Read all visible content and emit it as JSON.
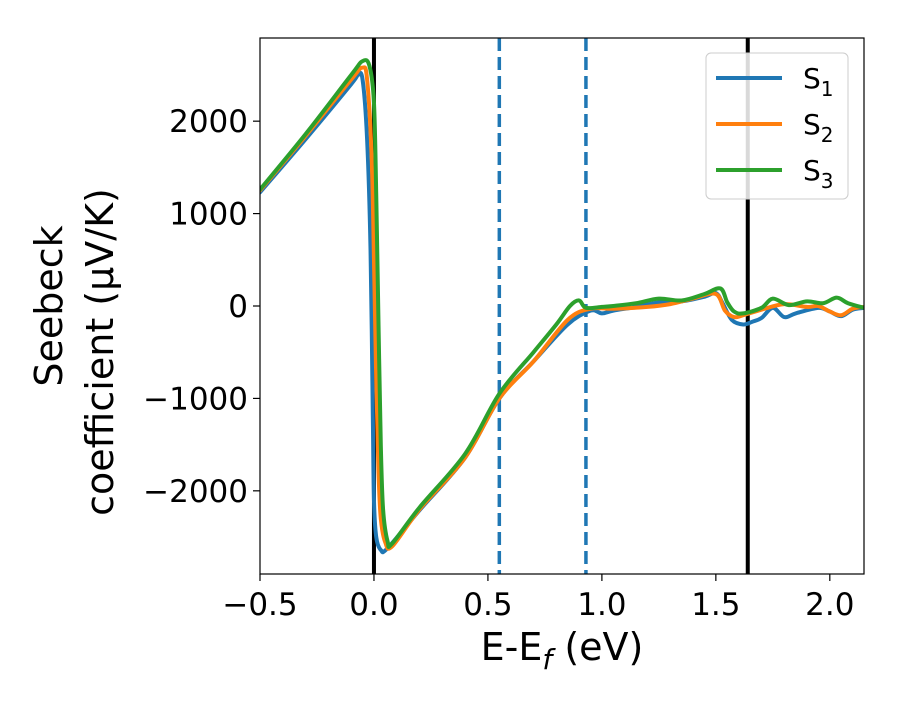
{
  "chart_data": {
    "type": "line",
    "xlabel": "E-E_f (eV)",
    "ylabel_line1": "Seebeck",
    "ylabel_line2": "coefficient  (μV/K)",
    "xlim": [
      -0.5,
      2.15
    ],
    "ylim": [
      -2900,
      2900
    ],
    "xticks": [
      -0.5,
      0.0,
      0.5,
      1.0,
      1.5,
      2.0
    ],
    "xtick_labels": [
      "−0.5",
      "0.0",
      "0.5",
      "1.0",
      "1.5",
      "2.0"
    ],
    "yticks": [
      -2000,
      -1000,
      0,
      1000,
      2000
    ],
    "ytick_labels": [
      "−2000",
      "−1000",
      "0",
      "1000",
      "2000"
    ],
    "vlines": [
      {
        "x": 0.0,
        "style": "solid",
        "color": "#000000"
      },
      {
        "x": 0.55,
        "style": "dashed",
        "color": "#1f77b4"
      },
      {
        "x": 0.93,
        "style": "dashed",
        "color": "#1f77b4"
      },
      {
        "x": 1.64,
        "style": "solid",
        "color": "#000000"
      }
    ],
    "legend_position": "top-right",
    "grid": false,
    "series": [
      {
        "name": "S1",
        "color": "#1f77b4",
        "points": [
          [
            -0.5,
            1230
          ],
          [
            -0.3,
            1805
          ],
          [
            -0.1,
            2400
          ],
          [
            -0.07,
            2500
          ],
          [
            -0.05,
            2450
          ],
          [
            -0.03,
            1800
          ],
          [
            -0.015,
            600
          ],
          [
            -0.005,
            -1200
          ],
          [
            0.0,
            -2100
          ],
          [
            0.01,
            -2500
          ],
          [
            0.03,
            -2640
          ],
          [
            0.06,
            -2620
          ],
          [
            0.2,
            -2210
          ],
          [
            0.4,
            -1640
          ],
          [
            0.55,
            -1000
          ],
          [
            0.7,
            -600
          ],
          [
            0.85,
            -200
          ],
          [
            0.95,
            -50
          ],
          [
            1.0,
            -80
          ],
          [
            1.05,
            -50
          ],
          [
            1.15,
            -10
          ],
          [
            1.25,
            40
          ],
          [
            1.35,
            50
          ],
          [
            1.45,
            100
          ],
          [
            1.5,
            140
          ],
          [
            1.53,
            30
          ],
          [
            1.57,
            -150
          ],
          [
            1.62,
            -200
          ],
          [
            1.66,
            -170
          ],
          [
            1.7,
            -130
          ],
          [
            1.75,
            -20
          ],
          [
            1.8,
            -120
          ],
          [
            1.85,
            -80
          ],
          [
            1.95,
            -20
          ],
          [
            2.0,
            -60
          ],
          [
            2.05,
            -110
          ],
          [
            2.1,
            -40
          ],
          [
            2.15,
            -20
          ]
        ]
      },
      {
        "name": "S2",
        "color": "#ff7f0e",
        "points": [
          [
            -0.5,
            1250
          ],
          [
            -0.3,
            1840
          ],
          [
            -0.1,
            2450
          ],
          [
            -0.05,
            2580
          ],
          [
            -0.03,
            2450
          ],
          [
            -0.01,
            1600
          ],
          [
            0.0,
            500
          ],
          [
            0.01,
            -800
          ],
          [
            0.02,
            -1800
          ],
          [
            0.03,
            -2300
          ],
          [
            0.05,
            -2560
          ],
          [
            0.08,
            -2600
          ],
          [
            0.2,
            -2200
          ],
          [
            0.4,
            -1640
          ],
          [
            0.55,
            -1000
          ],
          [
            0.7,
            -600
          ],
          [
            0.85,
            -150
          ],
          [
            0.95,
            -30
          ],
          [
            1.05,
            -30
          ],
          [
            1.2,
            -10
          ],
          [
            1.3,
            20
          ],
          [
            1.4,
            80
          ],
          [
            1.5,
            130
          ],
          [
            1.54,
            -50
          ],
          [
            1.58,
            -120
          ],
          [
            1.62,
            -100
          ],
          [
            1.7,
            -40
          ],
          [
            1.8,
            20
          ],
          [
            1.9,
            -10
          ],
          [
            1.95,
            0
          ],
          [
            2.0,
            -60
          ],
          [
            2.05,
            -100
          ],
          [
            2.1,
            -30
          ],
          [
            2.15,
            -10
          ]
        ]
      },
      {
        "name": "S3",
        "color": "#2ca02c",
        "points": [
          [
            -0.5,
            1260
          ],
          [
            -0.3,
            1860
          ],
          [
            -0.1,
            2500
          ],
          [
            -0.05,
            2650
          ],
          [
            -0.02,
            2600
          ],
          [
            0.0,
            2200
          ],
          [
            0.01,
            1200
          ],
          [
            0.02,
            -200
          ],
          [
            0.03,
            -1500
          ],
          [
            0.04,
            -2200
          ],
          [
            0.06,
            -2550
          ],
          [
            0.08,
            -2570
          ],
          [
            0.2,
            -2180
          ],
          [
            0.4,
            -1600
          ],
          [
            0.55,
            -950
          ],
          [
            0.7,
            -500
          ],
          [
            0.8,
            -200
          ],
          [
            0.86,
            0
          ],
          [
            0.9,
            60
          ],
          [
            0.93,
            -20
          ],
          [
            1.0,
            -10
          ],
          [
            1.05,
            0
          ],
          [
            1.15,
            30
          ],
          [
            1.25,
            80
          ],
          [
            1.35,
            60
          ],
          [
            1.45,
            130
          ],
          [
            1.52,
            190
          ],
          [
            1.55,
            40
          ],
          [
            1.58,
            -60
          ],
          [
            1.62,
            -80
          ],
          [
            1.7,
            -20
          ],
          [
            1.75,
            80
          ],
          [
            1.82,
            10
          ],
          [
            1.9,
            50
          ],
          [
            1.97,
            30
          ],
          [
            2.03,
            90
          ],
          [
            2.08,
            30
          ],
          [
            2.15,
            -20
          ]
        ]
      }
    ]
  },
  "legend": {
    "items": [
      {
        "base": "S",
        "sub": "1"
      },
      {
        "base": "S",
        "sub": "2"
      },
      {
        "base": "S",
        "sub": "3"
      }
    ]
  }
}
